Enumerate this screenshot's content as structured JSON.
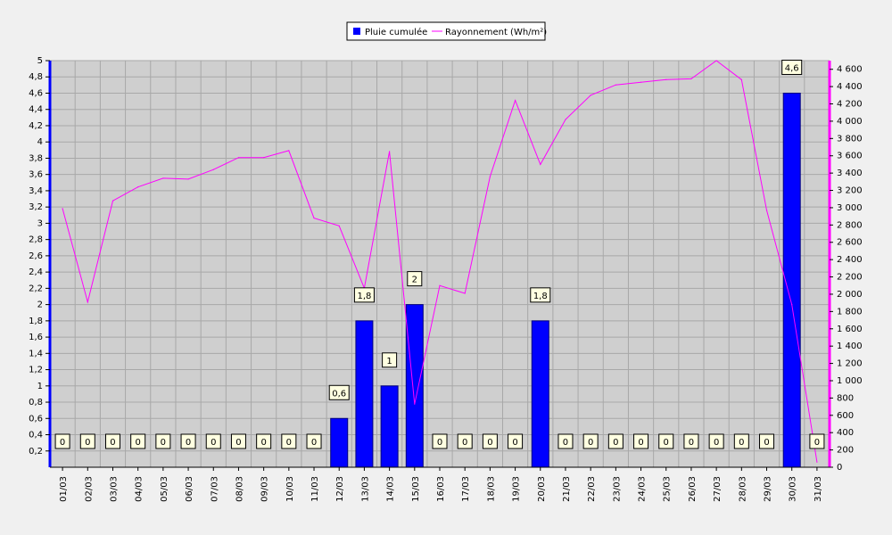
{
  "chart_data": {
    "type": "bar",
    "categories": [
      "01/03",
      "02/03",
      "03/03",
      "04/03",
      "05/03",
      "06/03",
      "07/03",
      "08/03",
      "09/03",
      "10/03",
      "11/03",
      "12/03",
      "13/03",
      "14/03",
      "15/03",
      "16/03",
      "17/03",
      "18/03",
      "19/03",
      "20/03",
      "21/03",
      "22/03",
      "23/03",
      "24/03",
      "25/03",
      "26/03",
      "27/03",
      "28/03",
      "29/03",
      "30/03",
      "31/03"
    ],
    "series": [
      {
        "name": "Pluie cumulée",
        "kind": "bar",
        "axis": "left",
        "color": "#0000ff",
        "values": [
          0,
          0,
          0,
          0,
          0,
          0,
          0,
          0,
          0,
          0,
          0,
          0.6,
          1.8,
          1,
          2,
          0,
          0,
          0,
          0,
          1.8,
          0,
          0,
          0,
          0,
          0,
          0,
          0,
          0,
          0,
          4.6,
          0
        ],
        "labels": [
          "0",
          "0",
          "0",
          "0",
          "0",
          "0",
          "0",
          "0",
          "0",
          "0",
          "0",
          "0,6",
          "1,8",
          "1",
          "2",
          "0",
          "0",
          "0",
          "0",
          "1,8",
          "0",
          "0",
          "0",
          "0",
          "0",
          "0",
          "0",
          "0",
          "0",
          "4,6",
          "0"
        ]
      },
      {
        "name": "Rayonnement (Wh/m²)",
        "kind": "line",
        "axis": "right",
        "color": "#ff00ff",
        "values": [
          2990,
          1910,
          3080,
          3240,
          3340,
          3330,
          3440,
          3580,
          3580,
          3660,
          2880,
          2790,
          2070,
          3650,
          730,
          2100,
          2010,
          3360,
          4240,
          3500,
          4020,
          4300,
          4420,
          4450,
          4480,
          4490,
          4700,
          4480,
          2970,
          1880,
          60
        ]
      }
    ],
    "y_left": {
      "min": 0,
      "max": 5,
      "ticks": [
        "0,2",
        "0,4",
        "0,6",
        "0,8",
        "1",
        "1,2",
        "1,4",
        "1,6",
        "1,8",
        "2",
        "2,2",
        "2,4",
        "2,6",
        "2,8",
        "3",
        "3,2",
        "3,4",
        "3,6",
        "3,8",
        "4",
        "4,2",
        "4,4",
        "4,6",
        "4,8",
        "5"
      ]
    },
    "y_right": {
      "min": 0,
      "max": 4700,
      "ticks": [
        "0",
        "200",
        "400",
        "600",
        "800",
        "1 000",
        "1 200",
        "1 400",
        "1 600",
        "1 800",
        "2 000",
        "2 200",
        "2 400",
        "2 600",
        "2 800",
        "3 000",
        "3 200",
        "3 400",
        "3 600",
        "3 800",
        "4 000",
        "4 200",
        "4 400",
        "4 600"
      ]
    },
    "grid": true,
    "legend": "top"
  }
}
